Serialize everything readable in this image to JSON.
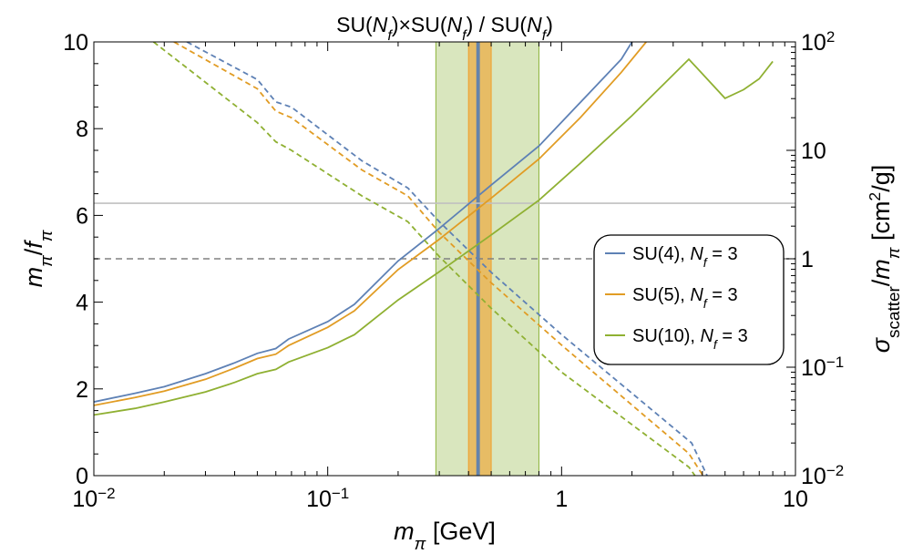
{
  "chart_data": {
    "type": "line",
    "title": "SU(N_f)×SU(N_f) / SU(N_f)",
    "title_parts": [
      {
        "t": "SU(",
        "it": false
      },
      {
        "t": "N",
        "it": true
      },
      {
        "t": "f",
        "it": true,
        "sub": true
      },
      {
        "t": ")×SU(",
        "it": false
      },
      {
        "t": "N",
        "it": true
      },
      {
        "t": "f",
        "it": true,
        "sub": true
      },
      {
        "t": ") / SU(",
        "it": false
      },
      {
        "t": "N",
        "it": true
      },
      {
        "t": "f",
        "it": true,
        "sub": true
      },
      {
        "t": ")",
        "it": false
      }
    ],
    "xlabel": "m_π [GeV]",
    "xlabel_parts": [
      {
        "t": "m",
        "it": true
      },
      {
        "t": "π",
        "it": true,
        "sub": true
      },
      {
        "t": " [GeV]",
        "it": false
      }
    ],
    "ylabel_left": "m_π/f_π",
    "ylabel_left_parts": [
      {
        "t": "m",
        "it": true
      },
      {
        "t": "π",
        "it": true,
        "sub": true
      },
      {
        "t": "/",
        "it": false
      },
      {
        "t": "f",
        "it": true
      },
      {
        "t": "π",
        "it": true,
        "sub": true
      }
    ],
    "ylabel_right": "σ_scatter/m_π [cm²/g]",
    "ylabel_right_parts": [
      {
        "t": "σ",
        "it": true
      },
      {
        "t": "scatter",
        "it": false,
        "sub": true
      },
      {
        "t": "/",
        "it": false
      },
      {
        "t": "m",
        "it": true
      },
      {
        "t": "π",
        "it": true,
        "sub": true
      },
      {
        "t": " [cm",
        "it": false
      },
      {
        "t": "2",
        "it": false,
        "sup": true
      },
      {
        "t": "/g]",
        "it": false
      }
    ],
    "x_scale": "log",
    "xlim": [
      0.01,
      10
    ],
    "ylim_left": [
      0,
      10
    ],
    "ylim_right": [
      0.01,
      100
    ],
    "y_right_scale": "log",
    "x_ticks": [
      {
        "v": 0.01,
        "base": "10",
        "exp": "−2"
      },
      {
        "v": 0.1,
        "base": "10",
        "exp": "−1"
      },
      {
        "v": 1,
        "base": "1",
        "exp": ""
      },
      {
        "v": 10,
        "base": "10",
        "exp": ""
      }
    ],
    "y_left_ticks": [
      {
        "v": 0,
        "label": "0"
      },
      {
        "v": 2,
        "label": "2"
      },
      {
        "v": 4,
        "label": "4"
      },
      {
        "v": 6,
        "label": "6"
      },
      {
        "v": 8,
        "label": "8"
      },
      {
        "v": 10,
        "label": "10"
      }
    ],
    "y_right_ticks": [
      {
        "v": 0.01,
        "base": "10",
        "exp": "−2"
      },
      {
        "v": 0.1,
        "base": "10",
        "exp": "−1"
      },
      {
        "v": 1,
        "base": "1",
        "exp": ""
      },
      {
        "v": 10,
        "base": "10",
        "exp": ""
      },
      {
        "v": 100,
        "base": "10",
        "exp": "2"
      }
    ],
    "grid": false,
    "legend_position": "right",
    "reference_lines": [
      {
        "axis": "left",
        "y": 6.28,
        "style": "solid",
        "color": "#c0c0c0"
      },
      {
        "axis": "left",
        "y": 5.0,
        "style": "dashed",
        "color": "#808080"
      }
    ],
    "bands": [
      {
        "x0": 0.29,
        "x1": 0.8,
        "color": "#8db33a",
        "opacity": 0.33
      },
      {
        "x0": 0.4,
        "x1": 0.5,
        "color": "#f0a02a",
        "opacity": 0.6
      },
      {
        "x0": 0.434,
        "x1": 0.445,
        "color": "#5b7fb0",
        "opacity": 0.9
      }
    ],
    "series": [
      {
        "name": "SU(4), N_f = 3",
        "name_parts": [
          {
            "t": "SU(4), ",
            "it": false
          },
          {
            "t": "N",
            "it": true
          },
          {
            "t": "f",
            "it": true,
            "sub": true
          },
          {
            "t": " = 3",
            "it": false
          }
        ],
        "color": "#5e81b5",
        "solid_axis": "left",
        "solid": [
          [
            0.01,
            1.7
          ],
          [
            0.015,
            1.9
          ],
          [
            0.02,
            2.05
          ],
          [
            0.03,
            2.35
          ],
          [
            0.04,
            2.6
          ],
          [
            0.05,
            2.82
          ],
          [
            0.06,
            2.93
          ],
          [
            0.068,
            3.15
          ],
          [
            0.1,
            3.55
          ],
          [
            0.13,
            3.95
          ],
          [
            0.2,
            4.95
          ],
          [
            0.3,
            5.7
          ],
          [
            0.5,
            6.7
          ],
          [
            0.8,
            7.6
          ],
          [
            1.2,
            8.6
          ],
          [
            1.8,
            9.6
          ],
          [
            2.0,
            10.0
          ]
        ],
        "dashed_axis": "right",
        "dashed": [
          [
            0.025,
            100
          ],
          [
            0.05,
            45
          ],
          [
            0.06,
            28
          ],
          [
            0.07,
            25
          ],
          [
            0.14,
            8.0
          ],
          [
            0.22,
            4.5
          ],
          [
            0.3,
            2.2
          ],
          [
            0.5,
            0.75
          ],
          [
            1.0,
            0.2
          ],
          [
            3.6,
            0.02
          ],
          [
            4.4,
            0.008
          ]
        ]
      },
      {
        "name": "SU(5), N_f = 3",
        "name_parts": [
          {
            "t": "SU(5), ",
            "it": false
          },
          {
            "t": "N",
            "it": true
          },
          {
            "t": "f",
            "it": true,
            "sub": true
          },
          {
            "t": " = 3",
            "it": false
          }
        ],
        "color": "#e19c24",
        "solid_axis": "left",
        "solid": [
          [
            0.01,
            1.62
          ],
          [
            0.015,
            1.8
          ],
          [
            0.02,
            1.95
          ],
          [
            0.03,
            2.22
          ],
          [
            0.04,
            2.48
          ],
          [
            0.05,
            2.7
          ],
          [
            0.06,
            2.8
          ],
          [
            0.068,
            3.0
          ],
          [
            0.1,
            3.42
          ],
          [
            0.13,
            3.8
          ],
          [
            0.2,
            4.75
          ],
          [
            0.3,
            5.45
          ],
          [
            0.5,
            6.4
          ],
          [
            0.8,
            7.3
          ],
          [
            1.2,
            8.25
          ],
          [
            1.8,
            9.3
          ],
          [
            2.3,
            10.0
          ]
        ],
        "dashed_axis": "right",
        "dashed": [
          [
            0.022,
            100
          ],
          [
            0.05,
            37
          ],
          [
            0.06,
            23
          ],
          [
            0.07,
            20
          ],
          [
            0.14,
            6.6
          ],
          [
            0.22,
            3.8
          ],
          [
            0.3,
            1.75
          ],
          [
            0.5,
            0.6
          ],
          [
            1.0,
            0.16
          ],
          [
            3.5,
            0.016
          ],
          [
            4.3,
            0.008
          ]
        ]
      },
      {
        "name": "SU(10), N_f = 3",
        "name_parts": [
          {
            "t": "SU(10), ",
            "it": false
          },
          {
            "t": "N",
            "it": true
          },
          {
            "t": "f",
            "it": true,
            "sub": true
          },
          {
            "t": " = 3",
            "it": false
          }
        ],
        "color": "#8fb032",
        "solid_axis": "left",
        "solid": [
          [
            0.01,
            1.4
          ],
          [
            0.015,
            1.55
          ],
          [
            0.02,
            1.7
          ],
          [
            0.03,
            1.93
          ],
          [
            0.04,
            2.15
          ],
          [
            0.05,
            2.35
          ],
          [
            0.06,
            2.45
          ],
          [
            0.068,
            2.62
          ],
          [
            0.1,
            2.95
          ],
          [
            0.13,
            3.25
          ],
          [
            0.2,
            4.05
          ],
          [
            0.3,
            4.7
          ],
          [
            0.5,
            5.55
          ],
          [
            0.8,
            6.35
          ],
          [
            1.2,
            7.2
          ],
          [
            2.0,
            8.3
          ],
          [
            3.5,
            9.6
          ],
          [
            5.0,
            8.7
          ],
          [
            6.0,
            8.9
          ],
          [
            7.0,
            9.15
          ],
          [
            8.0,
            9.55
          ]
        ],
        "dashed_axis": "right",
        "dashed": [
          [
            0.018,
            100
          ],
          [
            0.05,
            18
          ],
          [
            0.06,
            12
          ],
          [
            0.07,
            10
          ],
          [
            0.14,
            3.8
          ],
          [
            0.22,
            2.2
          ],
          [
            0.3,
            1.05
          ],
          [
            0.5,
            0.35
          ],
          [
            1.0,
            0.09
          ],
          [
            3.5,
            0.012
          ],
          [
            4.0,
            0.008
          ]
        ]
      }
    ]
  }
}
